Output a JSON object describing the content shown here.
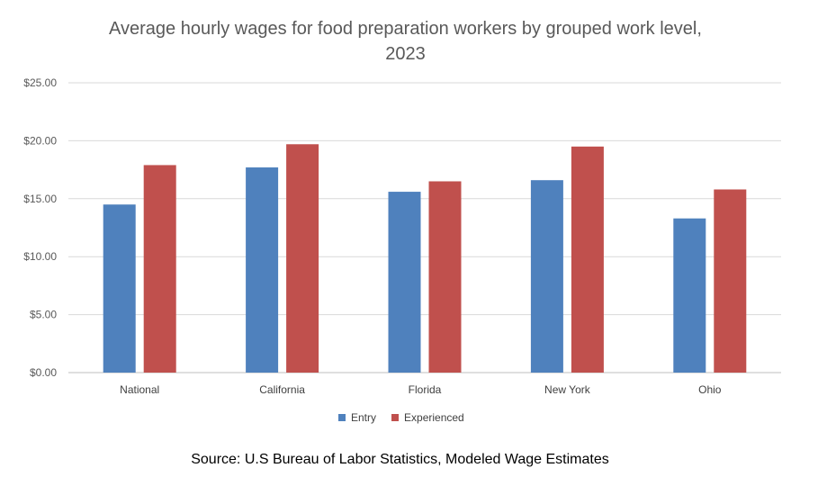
{
  "chart_data": {
    "type": "bar",
    "title_line1": "Average hourly wages for food preparation workers by grouped work level,",
    "title_line2": "2023",
    "categories": [
      "National",
      "California",
      "Florida",
      "New York",
      "Ohio"
    ],
    "series": [
      {
        "name": "Entry",
        "color": "#4f81bd",
        "values": [
          14.5,
          17.7,
          15.6,
          16.6,
          13.3
        ]
      },
      {
        "name": "Experienced",
        "color": "#c0504d",
        "values": [
          17.9,
          19.7,
          16.5,
          19.5,
          15.8
        ]
      }
    ],
    "y_ticks": [
      "$0.00",
      "$5.00",
      "$10.00",
      "$15.00",
      "$20.00",
      "$25.00"
    ],
    "ylim": [
      0,
      25
    ],
    "grid": true,
    "legend_position": "bottom"
  },
  "source": "Source: U.S Bureau of Labor Statistics, Modeled Wage Estimates"
}
